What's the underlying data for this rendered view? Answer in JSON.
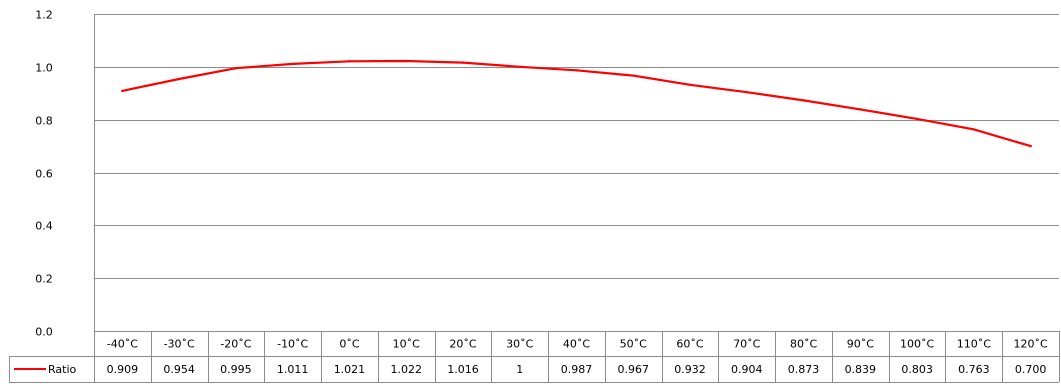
{
  "chart_data": {
    "type": "line",
    "categories": [
      "-40˚C",
      "-30˚C",
      "-20˚C",
      "-10˚C",
      "0˚C",
      "10˚C",
      "20˚C",
      "30˚C",
      "40˚C",
      "50˚C",
      "60˚C",
      "70˚C",
      "80˚C",
      "90˚C",
      "100˚C",
      "110˚C",
      "120˚C"
    ],
    "series": [
      {
        "name": "Ratio",
        "color": "#ff0000",
        "values": [
          0.909,
          0.954,
          0.995,
          1.011,
          1.021,
          1.022,
          1.016,
          1,
          0.987,
          0.967,
          0.932,
          0.904,
          0.873,
          0.839,
          0.803,
          0.763,
          0.7
        ],
        "value_labels": [
          "0.909",
          "0.954",
          "0.995",
          "1.011",
          "1.021",
          "1.022",
          "1.016",
          "1",
          "0.987",
          "0.967",
          "0.932",
          "0.904",
          "0.873",
          "0.839",
          "0.803",
          "0.763",
          "0.700"
        ]
      }
    ],
    "y_ticks": [
      "0.0",
      "0.2",
      "0.4",
      "0.6",
      "0.8",
      "1.0",
      "1.2"
    ],
    "ylim": [
      0,
      1.2
    ],
    "grid": true,
    "legend": "data-table",
    "title": "",
    "xlabel": "",
    "ylabel": ""
  }
}
